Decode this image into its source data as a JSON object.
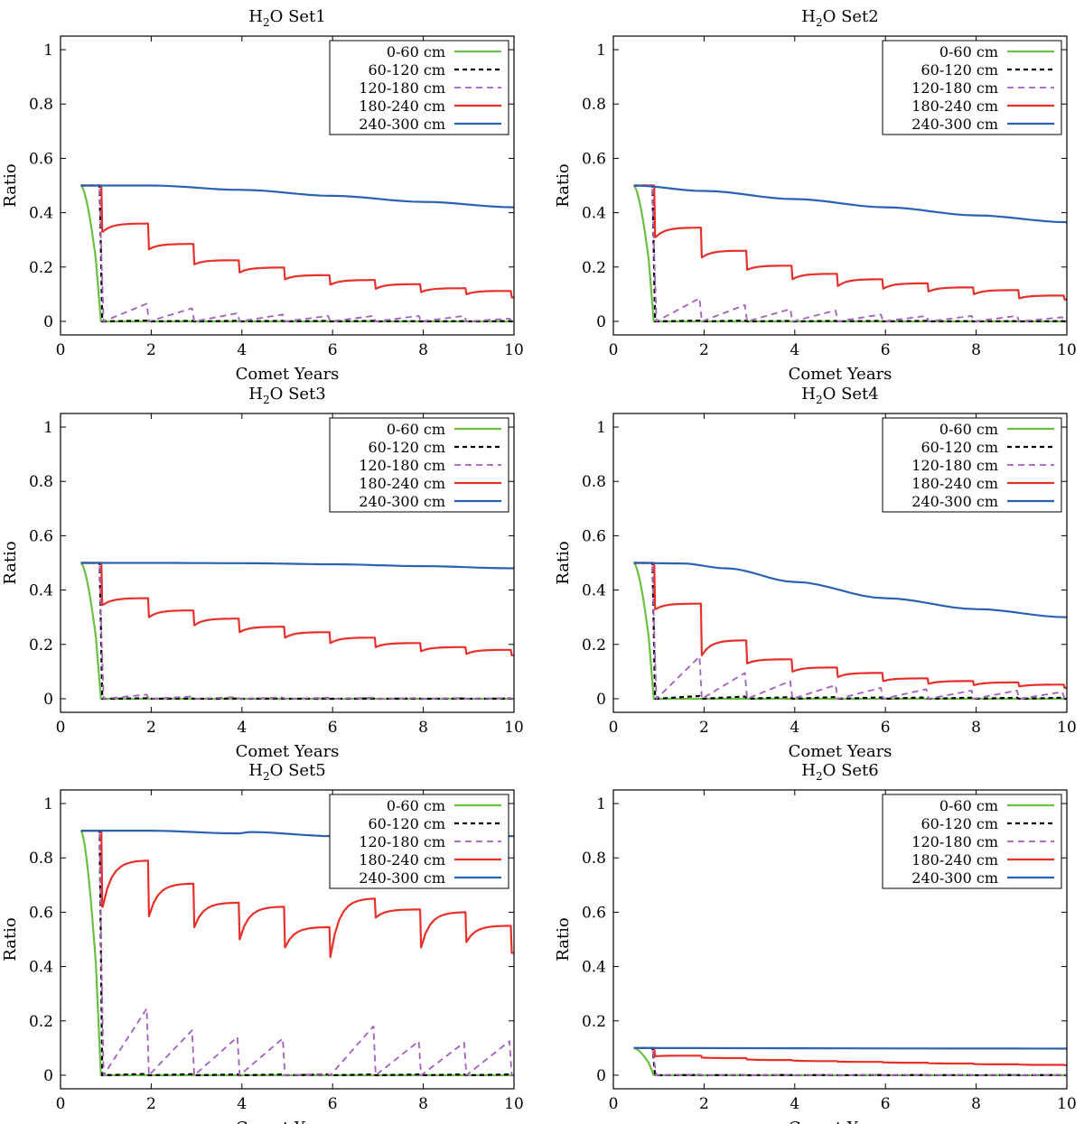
{
  "figure": {
    "title_prefix": "H",
    "title_sub": "2",
    "title_mid": "O"
  },
  "chart_data": [
    {
      "type": "line",
      "id": "set1",
      "title": "H2O Set1",
      "title_suffix": "Set1",
      "xlabel": "Comet Years",
      "ylabel": "Ratio",
      "xlim": [
        0,
        10
      ],
      "ylim": [
        -0.05,
        1.05
      ],
      "xticks": [
        0,
        2,
        4,
        6,
        8,
        10
      ],
      "yticks": [
        0,
        0.2,
        0.4,
        0.6,
        0.8,
        1
      ],
      "init": 0.5,
      "legend": "top-right",
      "deep": [
        [
          0.45,
          0.5
        ],
        [
          2,
          0.5
        ],
        [
          4,
          0.484
        ],
        [
          6,
          0.462
        ],
        [
          8,
          0.44
        ],
        [
          10,
          0.42
        ]
      ],
      "red": {
        "drop": 0.33,
        "peaks": [
          0.36,
          0.285,
          0.225,
          0.198,
          0.17,
          0.152,
          0.137,
          0.122,
          0.112
        ],
        "troughs": [
          0.265,
          0.21,
          0.18,
          0.155,
          0.135,
          0.12,
          0.108,
          0.1,
          0.088
        ]
      },
      "purple": [
        0.065,
        0.048,
        0.03,
        0.025,
        0.02,
        0.02,
        0.02,
        0.02,
        0.01
      ],
      "black": [
        0.003,
        0.002,
        0.002,
        0.002,
        0.002,
        0.002,
        0.001,
        0.001,
        0.001
      ]
    },
    {
      "type": "line",
      "id": "set2",
      "title": "H2O Set2",
      "title_suffix": "Set2",
      "xlabel": "Comet Years",
      "ylabel": "Ratio",
      "xlim": [
        0,
        10
      ],
      "ylim": [
        -0.05,
        1.05
      ],
      "xticks": [
        0,
        2,
        4,
        6,
        8,
        10
      ],
      "yticks": [
        0,
        0.2,
        0.4,
        0.6,
        0.8,
        1
      ],
      "init": 0.5,
      "legend": "top-right",
      "deep": [
        [
          0.45,
          0.5
        ],
        [
          2,
          0.48
        ],
        [
          4,
          0.45
        ],
        [
          6,
          0.42
        ],
        [
          8,
          0.39
        ],
        [
          10,
          0.365
        ]
      ],
      "red": {
        "drop": 0.31,
        "peaks": [
          0.345,
          0.26,
          0.205,
          0.175,
          0.155,
          0.14,
          0.125,
          0.115,
          0.095
        ],
        "troughs": [
          0.235,
          0.19,
          0.155,
          0.13,
          0.12,
          0.11,
          0.1,
          0.085,
          0.08
        ]
      },
      "purple": [
        0.085,
        0.06,
        0.045,
        0.04,
        0.025,
        0.02,
        0.02,
        0.02,
        0.015
      ],
      "black": [
        0.003,
        0.003,
        0.002,
        0.002,
        0.002,
        0.002,
        0.001,
        0.001,
        0.001
      ]
    },
    {
      "type": "line",
      "id": "set3",
      "title": "H2O Set3",
      "title_suffix": "Set3",
      "xlabel": "Comet Years",
      "ylabel": "Ratio",
      "xlim": [
        0,
        10
      ],
      "ylim": [
        -0.05,
        1.05
      ],
      "xticks": [
        0,
        2,
        4,
        6,
        8,
        10
      ],
      "yticks": [
        0,
        0.2,
        0.4,
        0.6,
        0.8,
        1
      ],
      "init": 0.5,
      "legend": "top-right",
      "deep": [
        [
          0.45,
          0.5
        ],
        [
          2,
          0.5
        ],
        [
          4,
          0.499
        ],
        [
          6,
          0.495
        ],
        [
          8,
          0.488
        ],
        [
          10,
          0.48
        ]
      ],
      "red": {
        "drop": 0.345,
        "peaks": [
          0.37,
          0.325,
          0.295,
          0.265,
          0.245,
          0.225,
          0.205,
          0.19,
          0.18
        ],
        "troughs": [
          0.3,
          0.27,
          0.245,
          0.225,
          0.205,
          0.19,
          0.175,
          0.165,
          0.16
        ]
      },
      "purple": [
        0.015,
        0.008,
        0.006,
        0.005,
        0.004,
        0.004,
        0.003,
        0.003,
        0.003
      ],
      "black": [
        0.002,
        0.001,
        0.001,
        0.001,
        0.001,
        0.001,
        0.001,
        0.001,
        0.001
      ]
    },
    {
      "type": "line",
      "id": "set4",
      "title": "H2O Set4",
      "title_suffix": "Set4",
      "xlabel": "Comet Years",
      "ylabel": "Ratio",
      "xlim": [
        0,
        10
      ],
      "ylim": [
        -0.05,
        1.05
      ],
      "xticks": [
        0,
        2,
        4,
        6,
        8,
        10
      ],
      "yticks": [
        0,
        0.2,
        0.4,
        0.6,
        0.8,
        1
      ],
      "init": 0.5,
      "legend": "top-right",
      "deep": [
        [
          0.45,
          0.5
        ],
        [
          1.5,
          0.498
        ],
        [
          2.5,
          0.48
        ],
        [
          4,
          0.43
        ],
        [
          6,
          0.37
        ],
        [
          8,
          0.33
        ],
        [
          10,
          0.3
        ]
      ],
      "red": {
        "drop": 0.33,
        "peaks": [
          0.35,
          0.215,
          0.145,
          0.115,
          0.095,
          0.075,
          0.065,
          0.06,
          0.052
        ],
        "troughs": [
          0.16,
          0.13,
          0.1,
          0.08,
          0.065,
          0.055,
          0.05,
          0.045,
          0.04
        ]
      },
      "purple": [
        0.155,
        0.095,
        0.065,
        0.05,
        0.04,
        0.035,
        0.03,
        0.03,
        0.025
      ],
      "black": [
        0.01,
        0.008,
        0.006,
        0.006,
        0.005,
        0.005,
        0.004,
        0.004,
        0.004
      ]
    },
    {
      "type": "line",
      "id": "set5",
      "title": "H2O Set5",
      "title_suffix": "Set5",
      "xlabel": "Comet Years",
      "ylabel": "Ratio",
      "xlim": [
        0,
        10
      ],
      "ylim": [
        -0.05,
        1.05
      ],
      "xticks": [
        0,
        2,
        4,
        6,
        8,
        10
      ],
      "yticks": [
        0,
        0.2,
        0.4,
        0.6,
        0.8,
        1
      ],
      "init": 0.9,
      "legend": "top-right",
      "deep": [
        [
          0.45,
          0.9
        ],
        [
          2,
          0.9
        ],
        [
          3.9,
          0.89
        ],
        [
          4.2,
          0.895
        ],
        [
          6,
          0.88
        ],
        [
          8,
          0.88
        ],
        [
          10,
          0.88
        ]
      ],
      "red": {
        "drop": 0.62,
        "peaks": [
          0.79,
          0.705,
          0.635,
          0.62,
          0.545,
          0.65,
          0.61,
          0.6,
          0.55
        ],
        "troughs": [
          0.585,
          0.545,
          0.5,
          0.47,
          0.435,
          0.58,
          0.47,
          0.49,
          0.45
        ]
      },
      "purple": [
        0.245,
        0.165,
        0.14,
        0.135,
        0.005,
        0.18,
        0.125,
        0.12,
        0.125
      ],
      "black": [
        0.005,
        0.004,
        0.003,
        0.003,
        0.003,
        0.003,
        0.003,
        0.003,
        0.003
      ]
    },
    {
      "type": "line",
      "id": "set6",
      "title": "H2O Set6",
      "title_suffix": "Set6",
      "xlabel": "Comet Years",
      "ylabel": "Ratio",
      "xlim": [
        0,
        10
      ],
      "ylim": [
        -0.05,
        1.05
      ],
      "xticks": [
        0,
        2,
        4,
        6,
        8,
        10
      ],
      "yticks": [
        0,
        0.2,
        0.4,
        0.6,
        0.8,
        1
      ],
      "init": 0.1,
      "legend": "top-right",
      "deep": [
        [
          0.45,
          0.1
        ],
        [
          10,
          0.098
        ]
      ],
      "red": {
        "drop": 0.07,
        "peaks": [
          0.072,
          0.063,
          0.056,
          0.052,
          0.049,
          0.046,
          0.043,
          0.04,
          0.038
        ],
        "troughs": [
          0.065,
          0.058,
          0.054,
          0.05,
          0.047,
          0.044,
          0.041,
          0.039,
          0.037
        ]
      },
      "purple": [
        0.003,
        0.002,
        0.002,
        0.002,
        0.002,
        0.002,
        0.002,
        0.002,
        0.002
      ],
      "black": [
        0.001,
        0.001,
        0.001,
        0.001,
        0.001,
        0.001,
        0.001,
        0.001,
        0.001
      ]
    }
  ],
  "series_names": [
    "0-60 cm",
    "60-120 cm",
    "120-180 cm",
    "180-240 cm",
    "240-300 cm"
  ],
  "colors": {
    "green": "#6abf45",
    "black": "#000000",
    "purple": "#a45fbe",
    "red": "#e8302b",
    "blue": "#2a62b3"
  }
}
